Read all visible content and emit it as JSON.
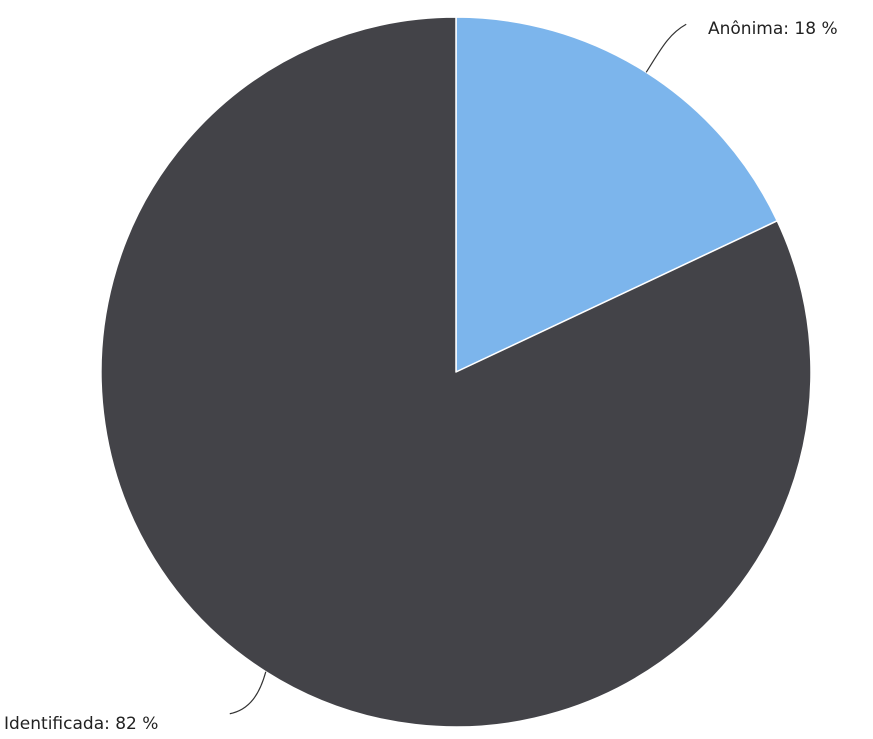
{
  "chart_data": {
    "type": "pie",
    "title": "",
    "slices": [
      {
        "label": "Anônima",
        "value": 18,
        "color": "#7cb5ec",
        "display": "Anônima: 18 %"
      },
      {
        "label": "Identificada",
        "value": 82,
        "color": "#434348",
        "display": "Identificada: 82 %"
      }
    ],
    "start_angle": "12 o'clock",
    "direction": "clockwise",
    "legend": "none",
    "unit": "%"
  }
}
